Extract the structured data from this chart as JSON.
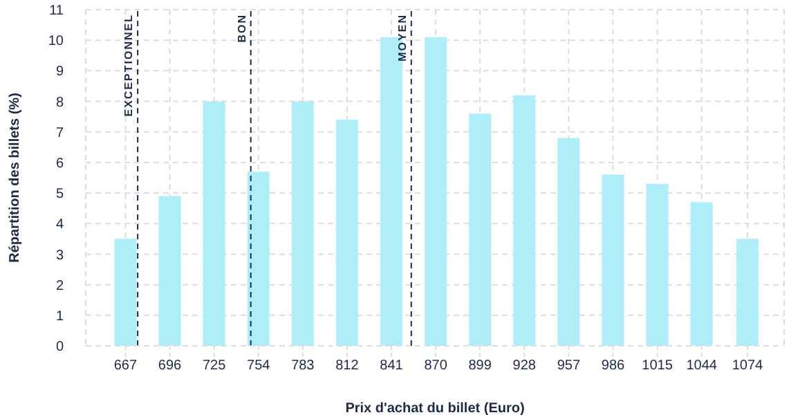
{
  "chart_data": {
    "type": "bar",
    "xlabel": "Prix d'achat du billet (Euro)",
    "ylabel": "Répartition des billets (%)",
    "x": [
      667,
      696,
      725,
      754,
      783,
      812,
      841,
      870,
      899,
      928,
      957,
      986,
      1015,
      1044,
      1074
    ],
    "values": [
      3.5,
      4.9,
      8.0,
      5.7,
      8.0,
      7.4,
      10.1,
      10.1,
      7.6,
      8.2,
      6.8,
      5.6,
      5.3,
      4.7,
      3.5
    ],
    "color": "#aeeef8",
    "xlim": [
      641,
      1098
    ],
    "xticks": [
      667,
      696,
      725,
      754,
      783,
      812,
      841,
      870,
      899,
      928,
      957,
      986,
      1015,
      1044,
      1074
    ],
    "ylim": [
      0,
      11
    ],
    "yticks": [
      0,
      1,
      2,
      3,
      4,
      5,
      6,
      7,
      8,
      9,
      10,
      11
    ],
    "grid": true,
    "legend": false,
    "ref_lines": [
      {
        "axis": "x",
        "value": 675,
        "label": "EXCEPTIONNEL",
        "color": "#1c2a48",
        "line_style": "dashed"
      },
      {
        "axis": "x",
        "value": 749,
        "label": "BON",
        "color": "#1c2a48",
        "line_style": "dashed"
      },
      {
        "axis": "x",
        "value": 854,
        "label": "MOYEN",
        "color": "#1c2a48",
        "line_style": "dashed"
      }
    ]
  }
}
